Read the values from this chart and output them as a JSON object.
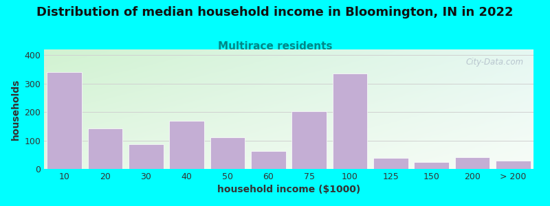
{
  "title": "Distribution of median household income in Bloomington, IN in 2022",
  "subtitle": "Multirace residents",
  "xlabel": "household income ($1000)",
  "ylabel": "households",
  "background_outer": "#00FFFF",
  "bar_color": "#C4AED4",
  "bar_edgecolor": "#ffffff",
  "categories": [
    "10",
    "20",
    "30",
    "40",
    "50",
    "60",
    "75",
    "100",
    "125",
    "150",
    "200",
    "> 200"
  ],
  "values": [
    340,
    143,
    88,
    168,
    110,
    62,
    203,
    335,
    38,
    25,
    40,
    28
  ],
  "ylim": [
    0,
    420
  ],
  "yticks": [
    0,
    100,
    200,
    300,
    400
  ],
  "title_fontsize": 13,
  "subtitle_fontsize": 11,
  "subtitle_color": "#008888",
  "axis_label_fontsize": 10,
  "tick_fontsize": 9,
  "watermark": "City-Data.com",
  "grid_color": "#d0d0d0",
  "gradient_topleft": [
    0.82,
    0.95,
    0.82
  ],
  "gradient_topright": [
    0.9,
    0.97,
    0.95
  ],
  "gradient_botleft": [
    0.9,
    0.97,
    0.9
  ],
  "gradient_botright": [
    0.97,
    0.99,
    0.97
  ]
}
